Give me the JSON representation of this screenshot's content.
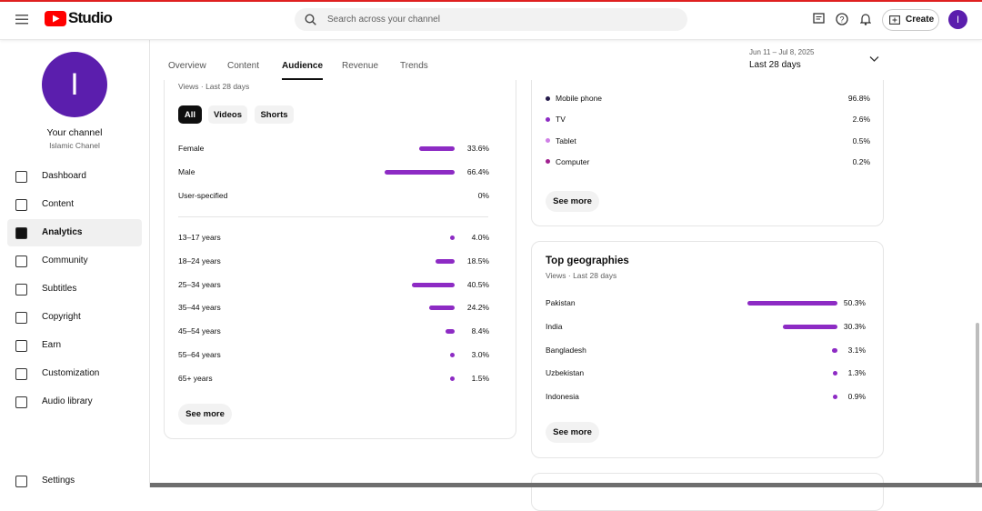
{
  "header": {
    "logo": "Studio",
    "search_placeholder": "Search across your channel",
    "create": "Create",
    "avatar": "I"
  },
  "sidebar": {
    "avatar": "I",
    "channel_label": "Your channel",
    "channel_name": "Islamic Chanel",
    "items": [
      "Dashboard",
      "Content",
      "Analytics",
      "Community",
      "Subtitles",
      "Copyright",
      "Earn",
      "Customization",
      "Audio library",
      "Settings"
    ],
    "active": 2
  },
  "tabs": {
    "items": [
      "Overview",
      "Content",
      "Audience",
      "Revenue",
      "Trends"
    ],
    "active": 2
  },
  "date_range": {
    "range": "Jun 11 – Jul 8, 2025",
    "label": "Last 28 days"
  },
  "gender_age": {
    "subtitle": "Views · Last 28 days",
    "filters": [
      "All",
      "Videos",
      "Shorts"
    ],
    "active_filter": 0,
    "gender": [
      {
        "label": "Female",
        "value": 33.6,
        "value_label": "33.6%"
      },
      {
        "label": "Male",
        "value": 66.4,
        "value_label": "66.4%"
      },
      {
        "label": "User-specified",
        "value": 0,
        "value_label": "0%"
      }
    ],
    "age": [
      {
        "label": "13–17 years",
        "value": 4.0,
        "value_label": "4.0%"
      },
      {
        "label": "18–24 years",
        "value": 18.5,
        "value_label": "18.5%"
      },
      {
        "label": "25–34 years",
        "value": 40.5,
        "value_label": "40.5%"
      },
      {
        "label": "35–44 years",
        "value": 24.2,
        "value_label": "24.2%"
      },
      {
        "label": "45–54 years",
        "value": 8.4,
        "value_label": "8.4%"
      },
      {
        "label": "55–64 years",
        "value": 3.0,
        "value_label": "3.0%"
      },
      {
        "label": "65+ years",
        "value": 1.5,
        "value_label": "1.5%"
      }
    ],
    "bar_color": "#8d2bc4",
    "see_more": "See more"
  },
  "devices": {
    "rows": [
      {
        "label": "Mobile phone",
        "value": 96.8,
        "value_label": "96.8%",
        "color": "#241a4a"
      },
      {
        "label": "TV",
        "value": 2.6,
        "value_label": "2.6%",
        "color": "#8d2bc4"
      },
      {
        "label": "Tablet",
        "value": 0.5,
        "value_label": "0.5%",
        "color": "#cf7fe6"
      },
      {
        "label": "Computer",
        "value": 0.2,
        "value_label": "0.2%",
        "color": "#a0208f"
      }
    ],
    "see_more": "See more"
  },
  "geographies": {
    "title": "Top geographies",
    "subtitle": "Views · Last 28 days",
    "rows": [
      {
        "label": "Pakistan",
        "value": 50.3,
        "value_label": "50.3%"
      },
      {
        "label": "India",
        "value": 30.3,
        "value_label": "30.3%"
      },
      {
        "label": "Bangladesh",
        "value": 3.1,
        "value_label": "3.1%"
      },
      {
        "label": "Uzbekistan",
        "value": 1.3,
        "value_label": "1.3%"
      },
      {
        "label": "Indonesia",
        "value": 0.9,
        "value_label": "0.9%"
      }
    ],
    "bar_color": "#8d2bc4",
    "see_more": "See more"
  }
}
